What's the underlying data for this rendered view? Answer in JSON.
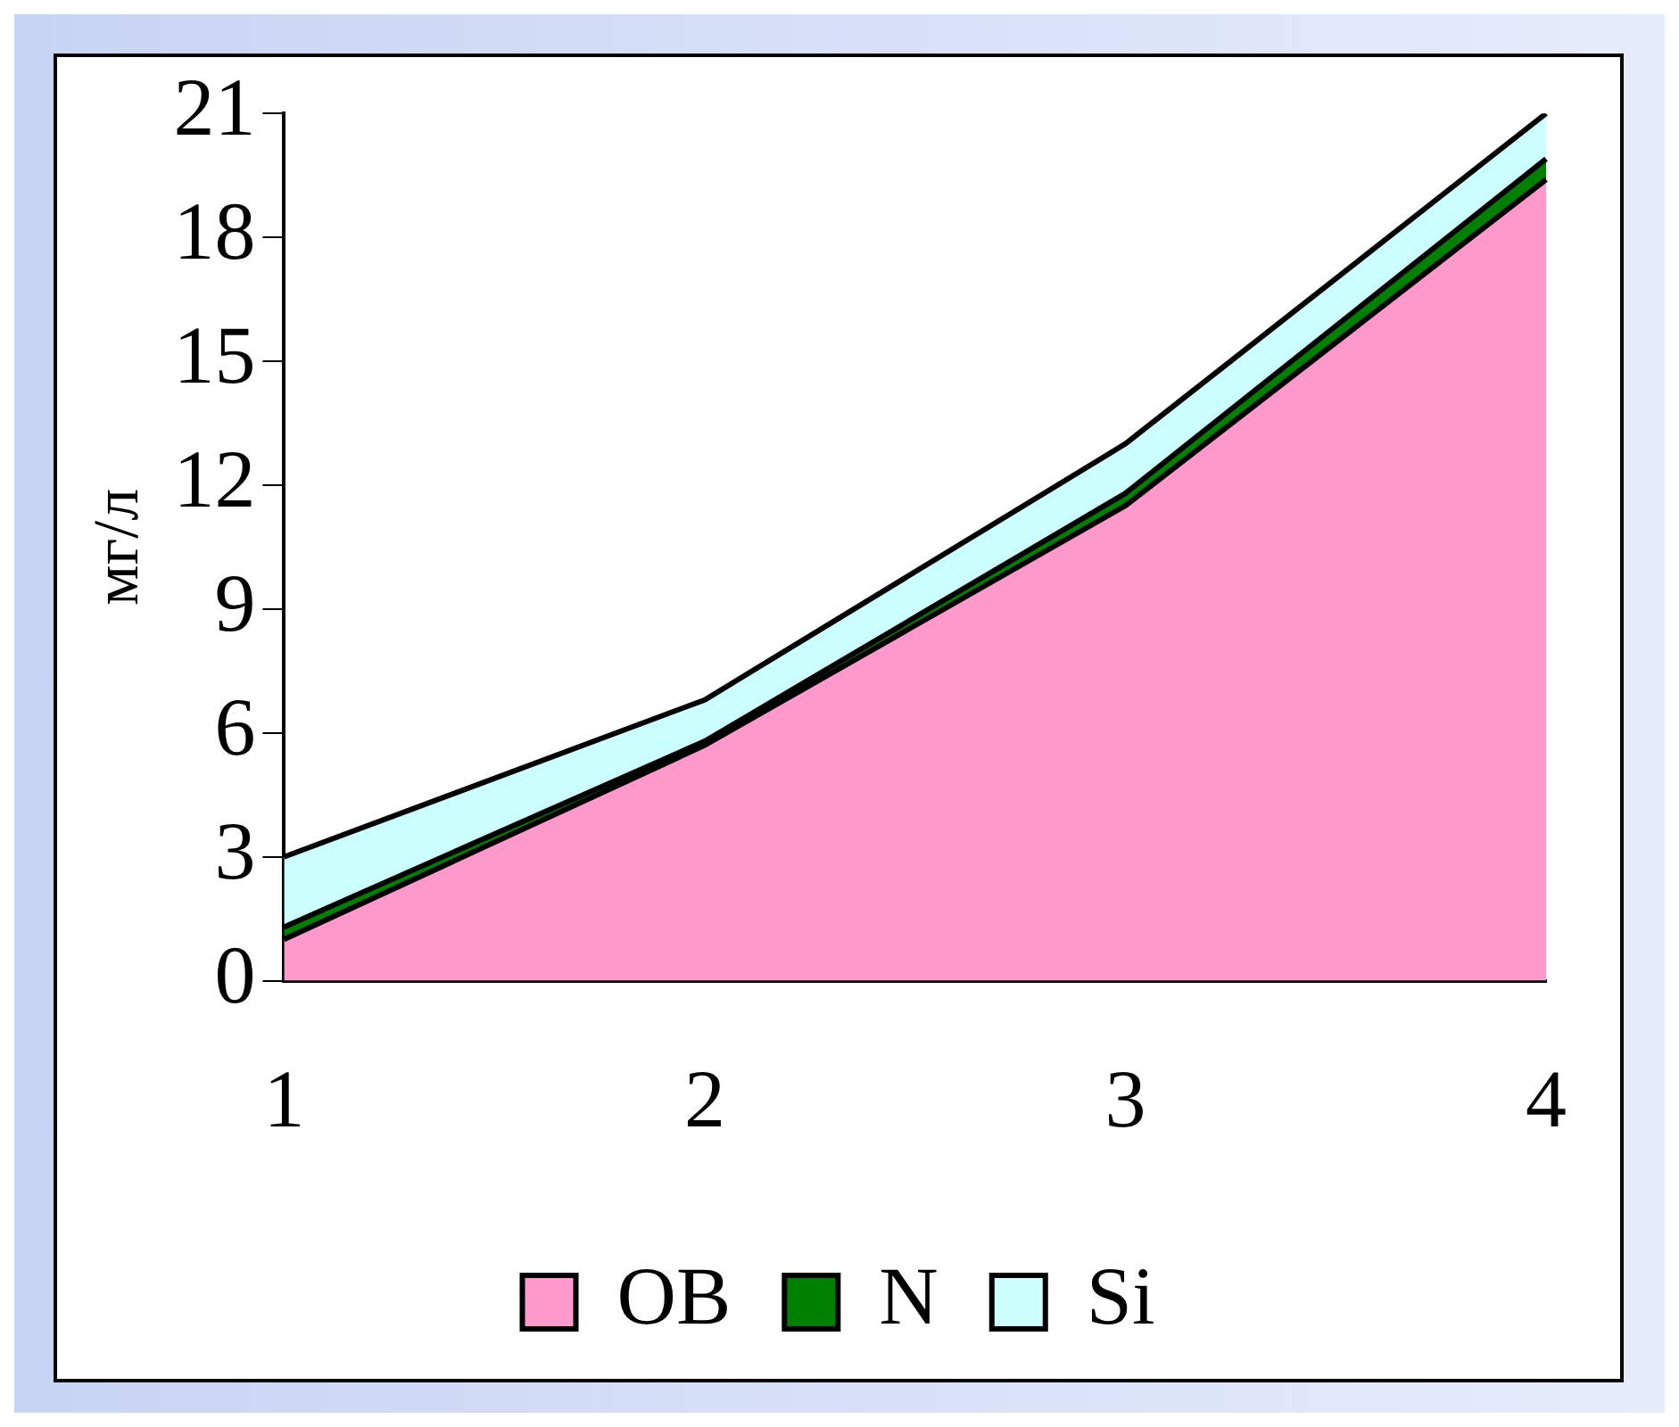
{
  "chart_data": {
    "type": "area",
    "stacked": true,
    "ylabel": "мг/л",
    "categories": [
      "1",
      "2",
      "3",
      "4"
    ],
    "ylim": [
      0,
      21
    ],
    "yticks": [
      0,
      3,
      6,
      9,
      12,
      15,
      18,
      21
    ],
    "legend": "bottom",
    "series": [
      {
        "name": "OB",
        "color": "#ff99cc",
        "values": [
          1.0,
          5.7,
          11.5,
          19.4
        ]
      },
      {
        "name": "N",
        "color": "#008000",
        "values": [
          0.3,
          0.1,
          0.3,
          0.5
        ]
      },
      {
        "name": "Si",
        "color": "#ccffff",
        "values": [
          1.7,
          1.0,
          1.2,
          1.1
        ]
      }
    ]
  }
}
